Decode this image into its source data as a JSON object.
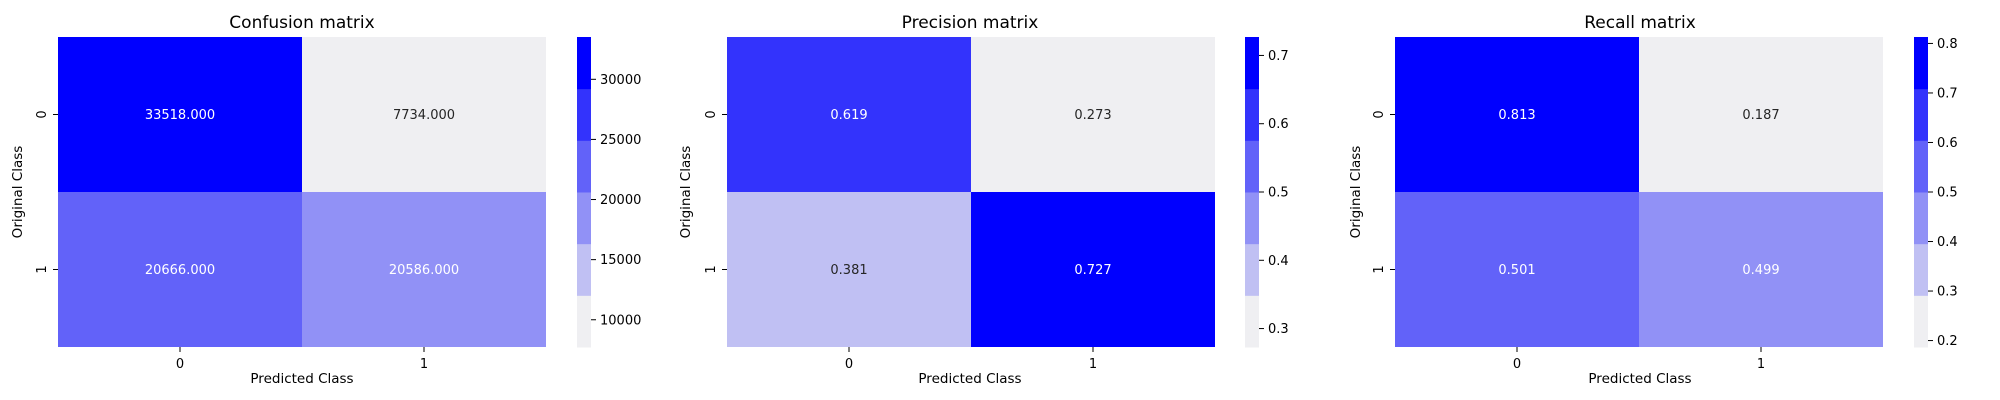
{
  "chart_data": [
    {
      "type": "heatmap",
      "title": "Confusion matrix",
      "xlabel": "Predicted Class",
      "ylabel": "Original Class",
      "x_categories": [
        "0",
        "1"
      ],
      "y_categories": [
        "0",
        "1"
      ],
      "values": [
        [
          33518.0,
          7734.0
        ],
        [
          20666.0,
          20586.0
        ]
      ],
      "cell_labels": [
        [
          "33518.000",
          "7734.000"
        ],
        [
          "20666.000",
          "20586.000"
        ]
      ],
      "colorbar": {
        "range": [
          7734,
          33518
        ],
        "ticks": [
          10000,
          15000,
          20000,
          25000,
          30000
        ],
        "tick_labels": [
          "10000",
          "15000",
          "20000",
          "25000",
          "30000"
        ]
      },
      "grid": false
    },
    {
      "type": "heatmap",
      "title": "Precision matrix",
      "xlabel": "Predicted Class",
      "ylabel": "Original Class",
      "x_categories": [
        "0",
        "1"
      ],
      "y_categories": [
        "0",
        "1"
      ],
      "values": [
        [
          0.619,
          0.273
        ],
        [
          0.381,
          0.727
        ]
      ],
      "cell_labels": [
        [
          "0.619",
          "0.273"
        ],
        [
          "0.381",
          "0.727"
        ]
      ],
      "colorbar": {
        "range": [
          0.273,
          0.727
        ],
        "ticks": [
          0.3,
          0.4,
          0.5,
          0.6,
          0.7
        ],
        "tick_labels": [
          "0.3",
          "0.4",
          "0.5",
          "0.6",
          "0.7"
        ]
      },
      "grid": false
    },
    {
      "type": "heatmap",
      "title": "Recall matrix",
      "xlabel": "Predicted Class",
      "ylabel": "Original Class",
      "x_categories": [
        "0",
        "1"
      ],
      "y_categories": [
        "0",
        "1"
      ],
      "values": [
        [
          0.813,
          0.187
        ],
        [
          0.501,
          0.499
        ]
      ],
      "cell_labels": [
        [
          "0.813",
          "0.187"
        ],
        [
          "0.501",
          "0.499"
        ]
      ],
      "colorbar": {
        "range": [
          0.187,
          0.813
        ],
        "ticks": [
          0.2,
          0.3,
          0.4,
          0.5,
          0.6,
          0.7,
          0.8
        ],
        "tick_labels": [
          "0.2",
          "0.3",
          "0.4",
          "0.5",
          "0.6",
          "0.7",
          "0.8"
        ]
      },
      "grid": false
    }
  ],
  "colormap": {
    "colors": [
      "#efeff2",
      "#c0c0f3",
      "#9191f6",
      "#6262f9",
      "#3333fc",
      "#0000ff"
    ]
  }
}
